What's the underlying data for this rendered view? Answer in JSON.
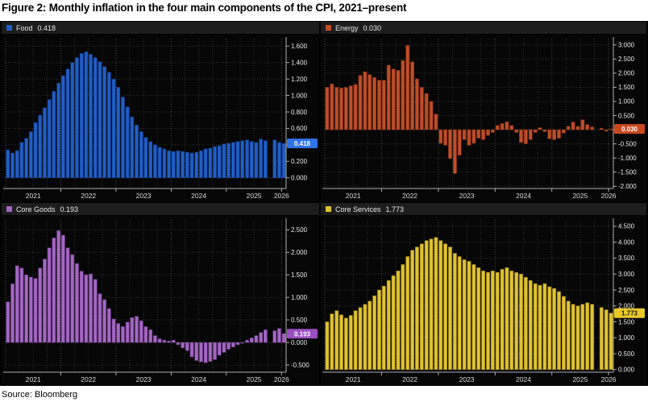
{
  "page": {
    "title": "Figure 2: Monthly inflation in the four main components of the CPI, 2021–present",
    "source": "Source: Bloomberg"
  },
  "axis": {
    "years": [
      2021,
      2022,
      2023,
      2024,
      2025,
      2026
    ],
    "x_start": "2021-01",
    "x_end": "2026-01",
    "missing_month": "2025-10",
    "grid": "dotted",
    "y_axis_side": "right"
  },
  "chart_data": [
    {
      "type": "bar",
      "name": "Food",
      "title": "Food",
      "last_label": "0.418",
      "last_value": 0.418,
      "color": "#1f5ec9",
      "color_dark": "#123c85",
      "box_bg": "#2f72e4",
      "box_fg": "#ffffff",
      "ymin": 0.0,
      "ymax": 1.6,
      "ystep": 0.2,
      "ylim": [
        -0.13,
        1.69
      ],
      "values": [
        0.34,
        0.3,
        0.33,
        0.43,
        0.48,
        0.56,
        0.67,
        0.76,
        0.85,
        0.95,
        1.05,
        1.15,
        1.24,
        1.32,
        1.4,
        1.46,
        1.51,
        1.53,
        1.5,
        1.46,
        1.41,
        1.35,
        1.28,
        1.2,
        1.1,
        0.98,
        0.86,
        0.74,
        0.64,
        0.56,
        0.49,
        0.44,
        0.4,
        0.37,
        0.35,
        0.33,
        0.32,
        0.33,
        0.32,
        0.31,
        0.3,
        0.31,
        0.33,
        0.35,
        0.36,
        0.38,
        0.39,
        0.41,
        0.42,
        0.43,
        0.44,
        0.45,
        0.46,
        0.44,
        0.43,
        0.47,
        0.45,
        null,
        0.46,
        0.43,
        0.418
      ]
    },
    {
      "type": "bar",
      "name": "Energy",
      "title": "Energy",
      "last_label": "0.030",
      "last_value": 0.03,
      "color": "#c04d27",
      "color_dark": "#7a2f15",
      "box_bg": "#c8491f",
      "box_fg": "#ffffff",
      "ymin": -2.0,
      "ymax": 3.0,
      "ystep": 0.5,
      "ylim": [
        -2.08,
        3.22
      ],
      "values": [
        1.5,
        1.62,
        1.5,
        1.47,
        1.5,
        1.55,
        1.6,
        1.92,
        2.05,
        1.95,
        1.85,
        1.75,
        1.75,
        2.28,
        2.15,
        2.1,
        2.45,
        2.98,
        2.4,
        1.8,
        1.5,
        1.28,
        1.0,
        0.55,
        -0.48,
        -0.55,
        -1.02,
        -1.55,
        -0.9,
        -0.35,
        -0.55,
        -0.48,
        -0.3,
        -0.35,
        -0.2,
        -0.1,
        0.15,
        0.22,
        0.28,
        0.15,
        -0.1,
        -0.45,
        -0.5,
        -0.35,
        -0.1,
        0.07,
        -0.07,
        -0.32,
        -0.35,
        -0.3,
        -0.12,
        0.12,
        0.27,
        0.12,
        0.35,
        0.18,
        0.1,
        null,
        0.05,
        -0.05,
        0.03
      ]
    },
    {
      "type": "bar",
      "name": "Core Goods",
      "title": "Core Goods",
      "last_label": "0.193",
      "last_value": 0.193,
      "color": "#a566c5",
      "color_dark": "#6e3f8a",
      "box_bg": "#9c4fc0",
      "box_fg": "#ffffff",
      "ymin": -0.5,
      "ymax": 2.5,
      "ystep": 0.5,
      "ylim": [
        -0.66,
        2.72
      ],
      "values": [
        0.9,
        1.3,
        1.7,
        1.65,
        1.5,
        1.45,
        1.42,
        1.65,
        1.85,
        2.1,
        2.32,
        2.48,
        2.38,
        2.1,
        1.95,
        1.75,
        1.58,
        1.5,
        1.52,
        1.4,
        1.08,
        0.95,
        0.75,
        0.52,
        0.42,
        0.35,
        0.45,
        0.55,
        0.58,
        0.48,
        0.35,
        0.28,
        0.15,
        0.08,
        0.05,
        0.03,
        0.05,
        -0.05,
        -0.12,
        -0.18,
        -0.32,
        -0.4,
        -0.43,
        -0.45,
        -0.42,
        -0.38,
        -0.28,
        -0.22,
        -0.15,
        -0.1,
        -0.05,
        0.0,
        0.05,
        0.1,
        0.15,
        0.22,
        0.28,
        null,
        0.26,
        0.31,
        0.193
      ]
    },
    {
      "type": "bar",
      "name": "Core Services",
      "title": "Core Services",
      "last_label": "1.773",
      "last_value": 1.773,
      "color": "#e0c233",
      "color_dark": "#8f7a14",
      "box_bg": "#e8c929",
      "box_fg": "#1a1a1a",
      "ymin": 0.0,
      "ymax": 4.5,
      "ystep": 0.5,
      "ylim": [
        -0.08,
        4.7
      ],
      "values": [
        1.5,
        1.75,
        1.85,
        1.72,
        1.62,
        1.7,
        1.85,
        1.95,
        2.05,
        2.15,
        2.32,
        2.5,
        2.62,
        2.8,
        2.95,
        3.1,
        3.3,
        3.55,
        3.75,
        3.85,
        3.95,
        4.05,
        4.1,
        4.15,
        4.05,
        3.95,
        3.85,
        3.65,
        3.55,
        3.45,
        3.4,
        3.3,
        3.2,
        3.1,
        3.05,
        3.1,
        3.05,
        3.15,
        3.2,
        3.1,
        3.05,
        3.0,
        2.9,
        2.8,
        2.7,
        2.65,
        2.7,
        2.6,
        2.55,
        2.45,
        2.3,
        2.15,
        2.05,
        2.0,
        2.05,
        2.1,
        2.05,
        null,
        1.95,
        1.88,
        1.773
      ]
    }
  ]
}
